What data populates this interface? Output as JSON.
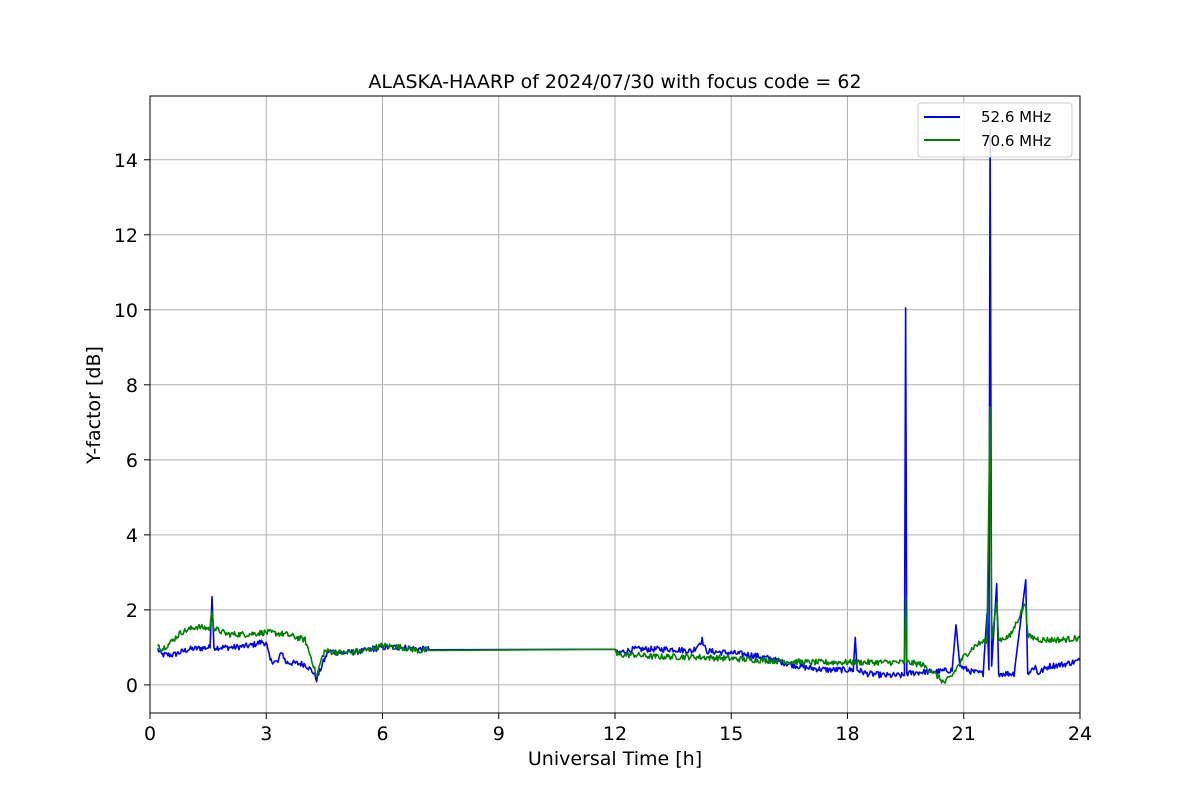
{
  "chart_data": {
    "type": "line",
    "title": "ALASKA-HAARP of 2024/07/30 with focus code = 62",
    "xlabel": "Universal Time [h]",
    "ylabel": "Y-factor [dB]",
    "xlim": [
      0,
      24
    ],
    "ylim": [
      -0.75,
      15.7
    ],
    "xticks": [
      0,
      3,
      6,
      9,
      12,
      15,
      18,
      21,
      24
    ],
    "yticks": [
      0,
      2,
      4,
      6,
      8,
      10,
      12,
      14
    ],
    "grid": true,
    "legend_position": "upper right",
    "series": [
      {
        "name": "52.6 MHz",
        "color": "#0000ff",
        "noise": 0.08,
        "points": [
          [
            0.2,
            0.95
          ],
          [
            0.3,
            0.8
          ],
          [
            0.6,
            0.8
          ],
          [
            1.0,
            0.95
          ],
          [
            1.55,
            1.0
          ],
          [
            1.6,
            2.35
          ],
          [
            1.65,
            1.0
          ],
          [
            2.2,
            1.0
          ],
          [
            2.6,
            1.05
          ],
          [
            2.9,
            1.15
          ],
          [
            3.0,
            1.1
          ],
          [
            3.1,
            0.65
          ],
          [
            3.3,
            0.6
          ],
          [
            3.4,
            0.9
          ],
          [
            3.5,
            0.6
          ],
          [
            4.0,
            0.55
          ],
          [
            4.2,
            0.35
          ],
          [
            4.3,
            0.15
          ],
          [
            4.45,
            0.55
          ],
          [
            4.6,
            0.9
          ],
          [
            5.0,
            0.85
          ],
          [
            5.5,
            0.9
          ],
          [
            6.0,
            1.0
          ],
          [
            6.5,
            1.0
          ],
          [
            7.0,
            0.95
          ],
          [
            7.2,
            0.95
          ],
          [
            12.0,
            0.95
          ],
          [
            12.05,
            0.85
          ],
          [
            12.5,
            0.95
          ],
          [
            13.0,
            0.95
          ],
          [
            13.5,
            0.95
          ],
          [
            14.0,
            0.9
          ],
          [
            14.25,
            1.2
          ],
          [
            14.35,
            0.9
          ],
          [
            15.0,
            0.85
          ],
          [
            15.5,
            0.8
          ],
          [
            16.0,
            0.7
          ],
          [
            16.5,
            0.55
          ],
          [
            17.0,
            0.45
          ],
          [
            17.5,
            0.4
          ],
          [
            18.15,
            0.4
          ],
          [
            18.2,
            1.25
          ],
          [
            18.25,
            0.4
          ],
          [
            18.5,
            0.3
          ],
          [
            19.0,
            0.25
          ],
          [
            19.47,
            0.25
          ],
          [
            19.5,
            10.05
          ],
          [
            19.53,
            0.3
          ],
          [
            20.0,
            0.35
          ],
          [
            20.3,
            0.35
          ],
          [
            20.7,
            0.4
          ],
          [
            20.8,
            1.6
          ],
          [
            20.9,
            0.5
          ],
          [
            21.2,
            0.35
          ],
          [
            21.5,
            0.3
          ],
          [
            21.6,
            1.9
          ],
          [
            21.65,
            0.4
          ],
          [
            21.68,
            14.8
          ],
          [
            21.72,
            0.5
          ],
          [
            21.85,
            2.7
          ],
          [
            21.9,
            0.3
          ],
          [
            22.3,
            0.3
          ],
          [
            22.6,
            2.8
          ],
          [
            22.65,
            0.3
          ],
          [
            22.85,
            0.5
          ],
          [
            22.9,
            0.3
          ],
          [
            23.2,
            0.5
          ],
          [
            23.6,
            0.55
          ],
          [
            24.0,
            0.65
          ]
        ]
      },
      {
        "name": "70.6 MHz",
        "color": "#008000",
        "noise": 0.08,
        "points": [
          [
            0.2,
            1.1
          ],
          [
            0.3,
            0.95
          ],
          [
            0.5,
            1.1
          ],
          [
            0.8,
            1.4
          ],
          [
            1.2,
            1.55
          ],
          [
            1.55,
            1.5
          ],
          [
            1.6,
            2.0
          ],
          [
            1.65,
            1.5
          ],
          [
            2.0,
            1.35
          ],
          [
            2.5,
            1.35
          ],
          [
            3.0,
            1.4
          ],
          [
            3.5,
            1.35
          ],
          [
            4.0,
            1.2
          ],
          [
            4.2,
            0.6
          ],
          [
            4.3,
            0.2
          ],
          [
            4.4,
            0.6
          ],
          [
            4.5,
            0.9
          ],
          [
            5.0,
            0.85
          ],
          [
            5.5,
            0.9
          ],
          [
            6.0,
            1.05
          ],
          [
            6.5,
            1.0
          ],
          [
            7.0,
            0.9
          ],
          [
            7.2,
            0.95
          ],
          [
            12.0,
            0.95
          ],
          [
            12.05,
            0.8
          ],
          [
            12.5,
            0.8
          ],
          [
            13.0,
            0.75
          ],
          [
            13.5,
            0.75
          ],
          [
            14.0,
            0.75
          ],
          [
            15.0,
            0.7
          ],
          [
            16.0,
            0.65
          ],
          [
            17.0,
            0.6
          ],
          [
            18.0,
            0.6
          ],
          [
            19.0,
            0.6
          ],
          [
            19.47,
            0.6
          ],
          [
            19.5,
            2.35
          ],
          [
            19.53,
            0.6
          ],
          [
            19.9,
            0.55
          ],
          [
            20.2,
            0.35
          ],
          [
            20.5,
            0.05
          ],
          [
            20.7,
            0.25
          ],
          [
            21.0,
            0.75
          ],
          [
            21.3,
            1.05
          ],
          [
            21.6,
            1.2
          ],
          [
            21.68,
            7.4
          ],
          [
            21.72,
            1.2
          ],
          [
            21.85,
            2.2
          ],
          [
            21.9,
            1.2
          ],
          [
            22.2,
            1.3
          ],
          [
            22.6,
            2.2
          ],
          [
            22.65,
            1.3
          ],
          [
            23.0,
            1.2
          ],
          [
            23.5,
            1.2
          ],
          [
            24.0,
            1.25
          ]
        ]
      }
    ]
  }
}
